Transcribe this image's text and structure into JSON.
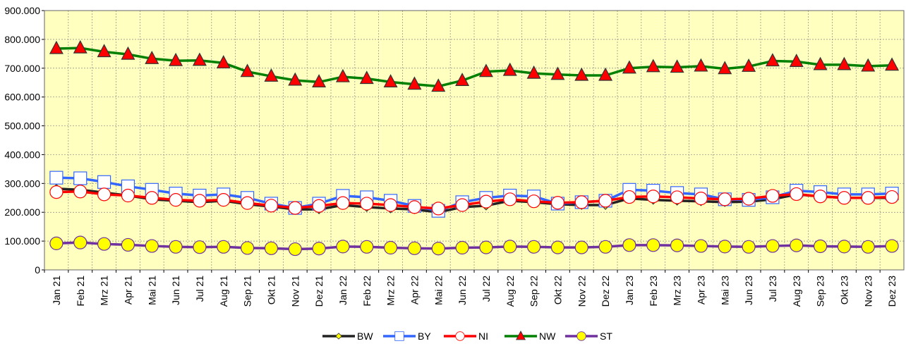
{
  "chart_data": {
    "type": "line",
    "categories": [
      "Jan 21",
      "Feb 21",
      "Mrz 21",
      "Apr 21",
      "Mai 21",
      "Jun 21",
      "Jul 21",
      "Aug 21",
      "Sep 21",
      "Okt 21",
      "Nov 21",
      "Dez 21",
      "Jan 22",
      "Feb 22",
      "Mrz 22",
      "Apr 22",
      "Mai 22",
      "Jun 22",
      "Jul 22",
      "Aug 22",
      "Sep 22",
      "Okt 22",
      "Nov 22",
      "Dez 22",
      "Jan 23",
      "Feb 23",
      "Mrz 23",
      "Apr 23",
      "Mai 23",
      "Jun 23",
      "Jul 23",
      "Aug 23",
      "Sep 23",
      "Okt 23",
      "Nov 23",
      "Dez 23"
    ],
    "series": [
      {
        "name": "BW",
        "color": "#222222",
        "marker": "diamond",
        "marker_color": "#ffff00",
        "values": [
          282000,
          278000,
          268000,
          258000,
          245000,
          240000,
          235000,
          240000,
          228000,
          220000,
          210000,
          210000,
          225000,
          218000,
          213000,
          210000,
          200000,
          218000,
          223000,
          240000,
          235000,
          228000,
          225000,
          225000,
          248000,
          243000,
          240000,
          238000,
          235000,
          237000,
          245000,
          262000,
          255000,
          250000,
          250000,
          250000
        ]
      },
      {
        "name": "BY",
        "color": "#3366ff",
        "marker": "square",
        "marker_color": "#ffffff",
        "values": [
          320000,
          318000,
          305000,
          290000,
          278000,
          265000,
          258000,
          262000,
          250000,
          230000,
          215000,
          230000,
          257000,
          252000,
          240000,
          222000,
          205000,
          235000,
          250000,
          258000,
          255000,
          230000,
          235000,
          240000,
          278000,
          275000,
          267000,
          262000,
          245000,
          243000,
          252000,
          275000,
          270000,
          262000,
          262000,
          265000
        ]
      },
      {
        "name": "NI",
        "color": "#ff0000",
        "marker": "circle",
        "marker_color": "#ffffff",
        "values": [
          270000,
          272000,
          262000,
          258000,
          250000,
          243000,
          240000,
          243000,
          232000,
          223000,
          215000,
          222000,
          232000,
          230000,
          225000,
          218000,
          213000,
          225000,
          237000,
          245000,
          238000,
          233000,
          235000,
          240000,
          253000,
          255000,
          252000,
          248000,
          245000,
          247000,
          257000,
          263000,
          255000,
          250000,
          250000,
          253000
        ]
      },
      {
        "name": "NW",
        "color": "#008000",
        "marker": "triangle",
        "marker_color": "#ff0000",
        "values": [
          768000,
          770000,
          757000,
          748000,
          733000,
          726000,
          727000,
          718000,
          688000,
          672000,
          658000,
          652000,
          670000,
          664000,
          652000,
          644000,
          637000,
          657000,
          688000,
          692000,
          682000,
          678000,
          675000,
          675000,
          700000,
          705000,
          703000,
          707000,
          698000,
          706000,
          725000,
          723000,
          712000,
          712000,
          707000,
          710000
        ]
      },
      {
        "name": "ST",
        "color": "#7030a0",
        "marker": "circle",
        "marker_color": "#ffff00",
        "values": [
          92000,
          95000,
          90000,
          87000,
          83000,
          80000,
          79000,
          80000,
          76000,
          75000,
          72000,
          74000,
          81000,
          80000,
          77000,
          75000,
          74000,
          77000,
          78000,
          81000,
          80000,
          78000,
          78000,
          80000,
          86000,
          86000,
          85000,
          83000,
          81000,
          80000,
          83000,
          85000,
          82000,
          81000,
          80000,
          83000
        ]
      }
    ],
    "ylim": [
      0,
      900000
    ],
    "yticks": [
      0,
      {
        "value": 100000,
        "label": "100.000"
      },
      {
        "value": 200000,
        "label": "200.000"
      },
      {
        "value": 300000,
        "label": "300.000"
      },
      {
        "value": 400000,
        "label": "400.000"
      },
      {
        "value": 500000,
        "label": "500.000"
      },
      {
        "value": 600000,
        "label": "600.000"
      },
      {
        "value": 700000,
        "label": "700.000"
      },
      {
        "value": 800000,
        "label": "800.000"
      },
      {
        "value": 900000,
        "label": "900.000"
      }
    ],
    "grid": true,
    "plot_background": "#ffffc0",
    "legend": "bottom"
  }
}
